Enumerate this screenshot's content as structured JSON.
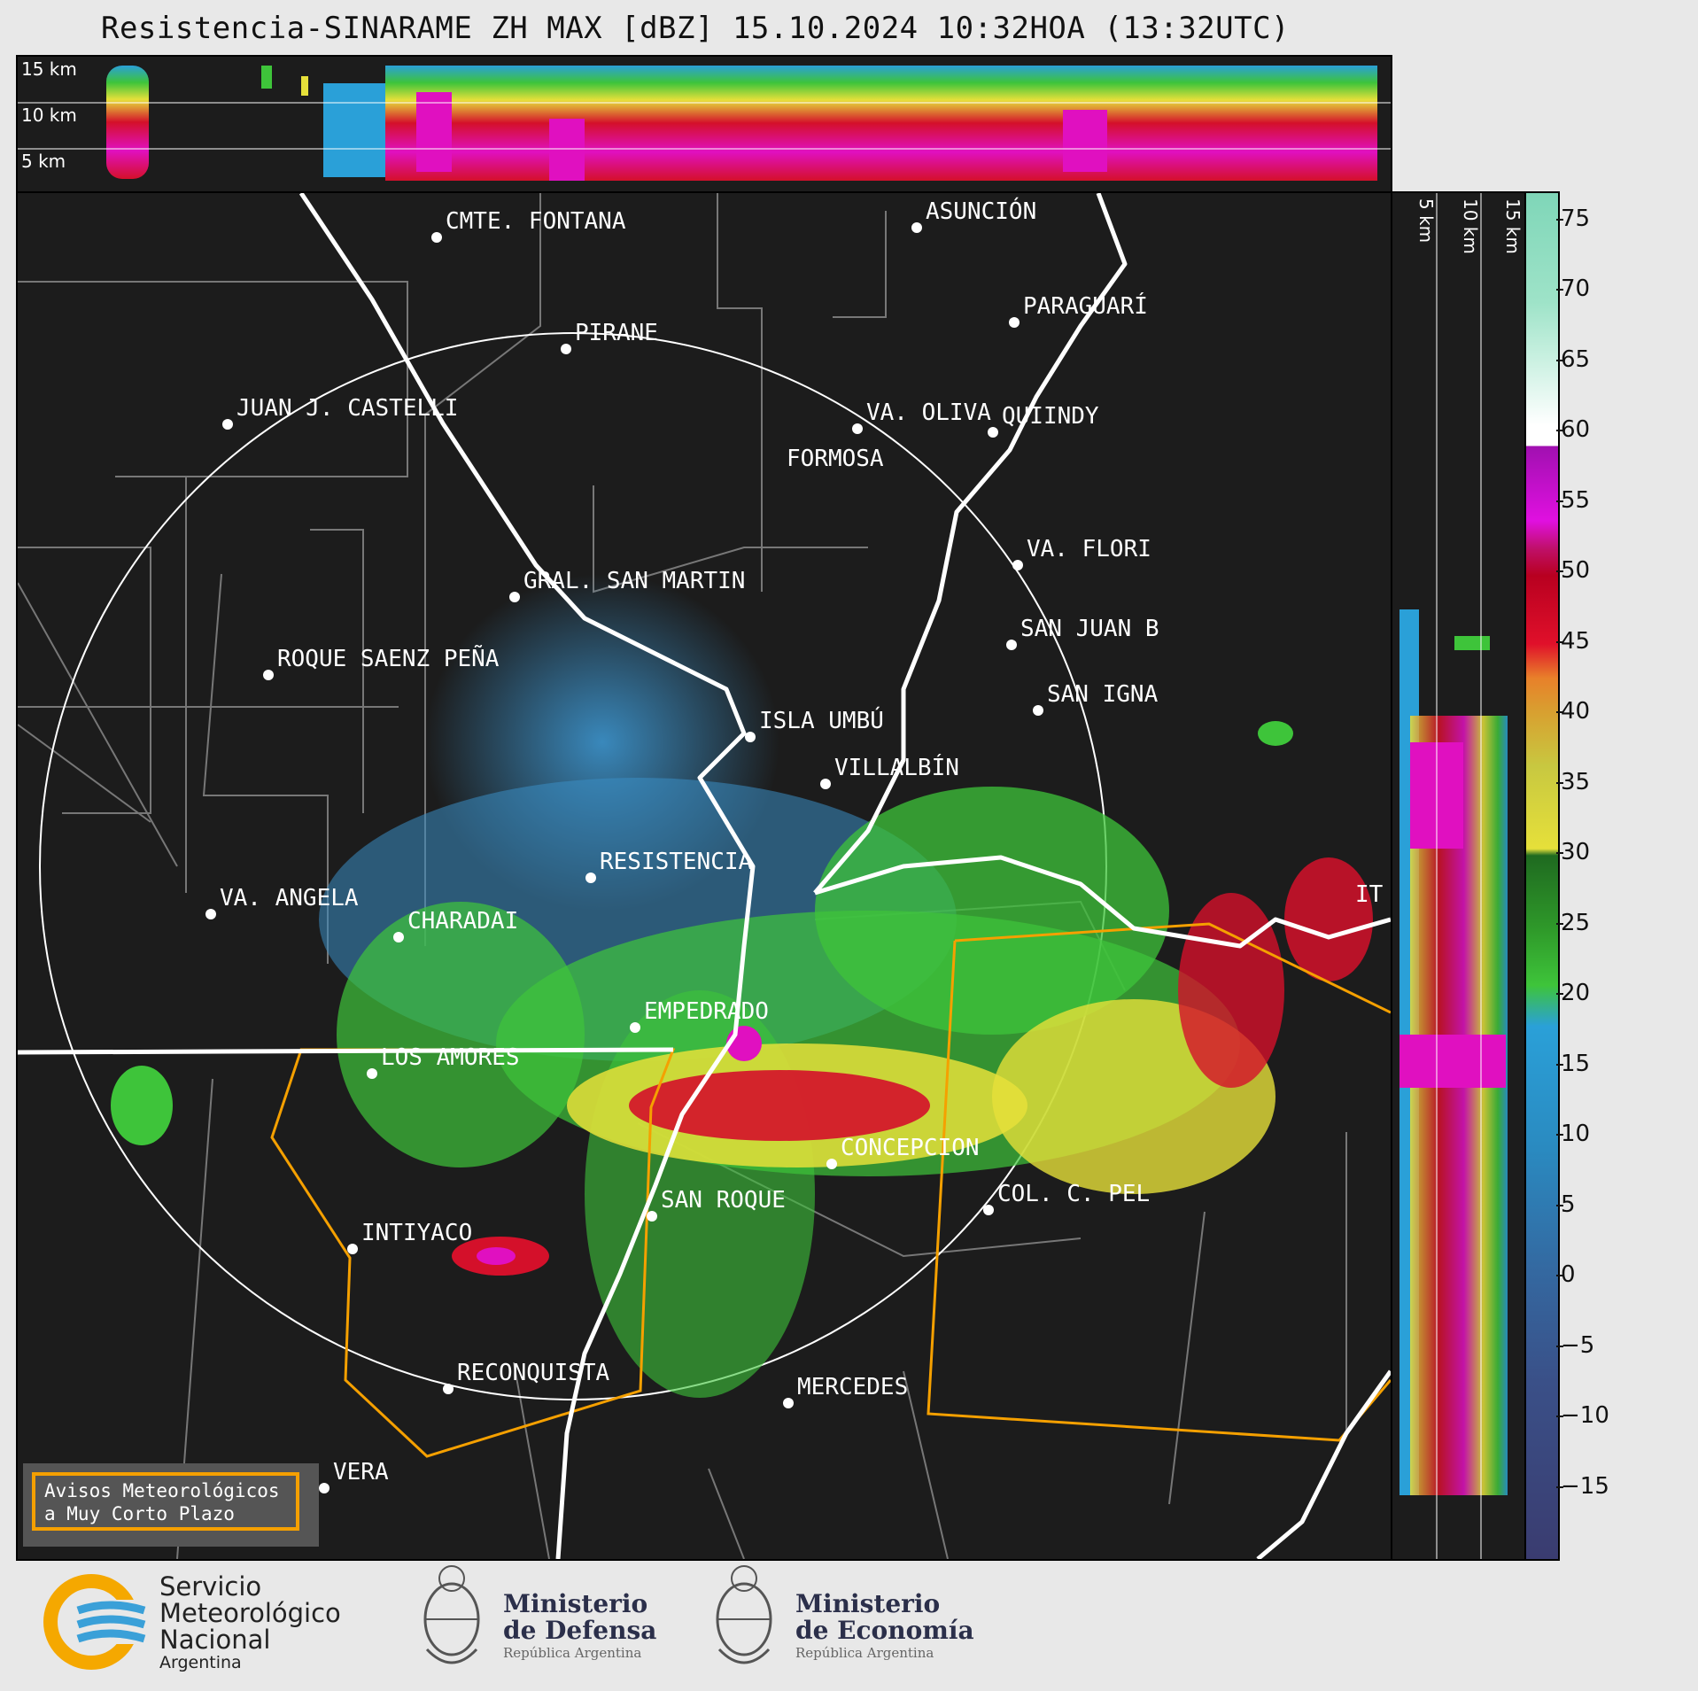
{
  "title": "Resistencia-SINARAME ZH MAX [dBZ] 15.10.2024 10:32HOA (13:32UTC)",
  "top_panel": {
    "height_labels": [
      "15 km",
      "10 km",
      "5 km"
    ]
  },
  "side_panel": {
    "height_labels": [
      "5 km",
      "10 km",
      "15 km"
    ]
  },
  "colorbar": {
    "ticks": [
      "75",
      "70",
      "65",
      "60",
      "55",
      "50",
      "45",
      "40",
      "35",
      "30",
      "25",
      "20",
      "15",
      "10",
      "5",
      "0",
      "−5",
      "−10",
      "−15"
    ],
    "range": [
      -20,
      77
    ]
  },
  "map": {
    "cities": [
      {
        "name": "CMTE. FONTANA"
      },
      {
        "name": "ASUNCIÓN"
      },
      {
        "name": "PIRANE"
      },
      {
        "name": "PARAGUARÍ"
      },
      {
        "name": "JUAN J. CASTELLI"
      },
      {
        "name": "VA. OLIVA"
      },
      {
        "name": "QUIINDY"
      },
      {
        "name": "FORMOSA"
      },
      {
        "name": "VA. FLORI"
      },
      {
        "name": "GRAL. SAN MARTIN"
      },
      {
        "name": "SAN JUAN B"
      },
      {
        "name": "ROQUE SAENZ PEÑA"
      },
      {
        "name": "SAN IGNA"
      },
      {
        "name": "ISLA UMBÚ"
      },
      {
        "name": "VILLALBÍN"
      },
      {
        "name": "RESISTENCIA"
      },
      {
        "name": "VA. ANGELA"
      },
      {
        "name": "CHARADAI"
      },
      {
        "name": "IT"
      },
      {
        "name": "EMPEDRADO"
      },
      {
        "name": "LOS AMORES"
      },
      {
        "name": "CONCEPCION"
      },
      {
        "name": "SAN ROQUE"
      },
      {
        "name": "COL. C. PEL"
      },
      {
        "name": "INTIYACO"
      },
      {
        "name": "RECONQUISTA"
      },
      {
        "name": "MERCEDES"
      },
      {
        "name": "VERA"
      }
    ],
    "warning_box": {
      "line1": "Avisos Meteorológicos",
      "line2": "a Muy Corto Plazo"
    },
    "colors": {
      "background": "#1c1c1c",
      "warning_outline": "#f5a000",
      "borders": "#ffffff"
    }
  },
  "footer": {
    "smn": {
      "line1": "Servicio",
      "line2": "Meteorológico",
      "line3": "Nacional",
      "line4": "Argentina"
    },
    "defensa": {
      "line1": "Ministerio",
      "line2": "de Defensa",
      "line3": "República Argentina"
    },
    "economia": {
      "line1": "Ministerio",
      "line2": "de Economía",
      "line3": "República Argentina"
    }
  }
}
